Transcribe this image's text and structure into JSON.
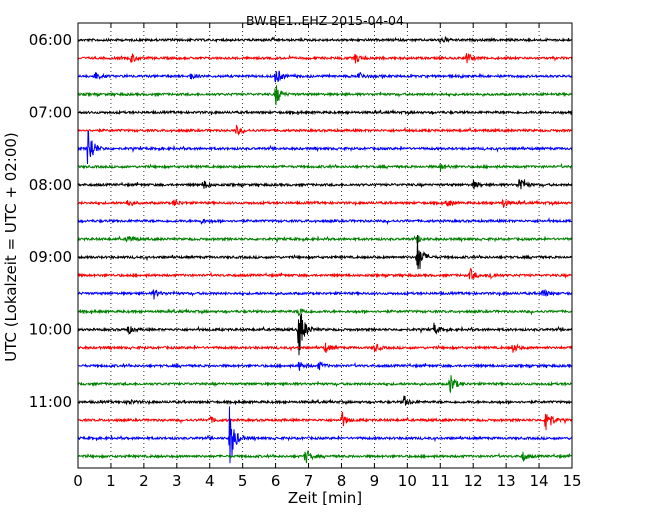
{
  "chart_data": {
    "type": "line",
    "title": "BW.BE1..EHZ 2015-04-04",
    "xlabel": "Zeit  [min]",
    "ylabel": "UTC (Lokalzeit = UTC + 02:00)",
    "xlim": [
      0,
      15
    ],
    "x_ticks": [
      "0",
      "1",
      "2",
      "3",
      "4",
      "5",
      "6",
      "7",
      "8",
      "9",
      "10",
      "11",
      "12",
      "13",
      "14",
      "15"
    ],
    "y_tick_labels": [
      "06:00",
      "07:00",
      "08:00",
      "09:00",
      "10:00",
      "11:00"
    ],
    "grid": "vertical dotted",
    "trace_interval_minutes": 15,
    "colors": [
      "#000000",
      "#ff0000",
      "#0000ff",
      "#008000"
    ],
    "traces": [
      {
        "start": "06:00",
        "events": [
          [
            11,
            0.2
          ]
        ]
      },
      {
        "start": "06:15",
        "events": [
          [
            1.6,
            0.35
          ],
          [
            8.4,
            0.3
          ],
          [
            11.8,
            0.35
          ]
        ]
      },
      {
        "start": "06:30",
        "events": [
          [
            0.5,
            0.25
          ],
          [
            3.4,
            0.2
          ],
          [
            6.0,
            0.6
          ],
          [
            8.5,
            0.3
          ]
        ]
      },
      {
        "start": "06:45",
        "events": [
          [
            6.0,
            0.7
          ]
        ]
      },
      {
        "start": "07:00",
        "events": []
      },
      {
        "start": "07:15",
        "events": [
          [
            4.8,
            0.3
          ]
        ]
      },
      {
        "start": "07:30",
        "events": [
          [
            0.3,
            1.6
          ]
        ]
      },
      {
        "start": "07:45",
        "events": [
          [
            11.0,
            0.2
          ]
        ]
      },
      {
        "start": "08:00",
        "events": [
          [
            3.8,
            0.3
          ],
          [
            12.0,
            0.25
          ],
          [
            13.4,
            0.6
          ]
        ]
      },
      {
        "start": "08:15",
        "events": [
          [
            1.5,
            0.25
          ],
          [
            2.9,
            0.25
          ],
          [
            11.2,
            0.25
          ],
          [
            12.9,
            0.3
          ]
        ]
      },
      {
        "start": "08:30",
        "events": [
          [
            3.7,
            0.2
          ]
        ]
      },
      {
        "start": "08:45",
        "events": [
          [
            1.5,
            0.3
          ],
          [
            10.3,
            0.2
          ]
        ]
      },
      {
        "start": "09:00",
        "events": [
          [
            10.3,
            1.3
          ]
        ]
      },
      {
        "start": "09:15",
        "events": [
          [
            11.9,
            0.4
          ],
          [
            12.5,
            0.25
          ]
        ]
      },
      {
        "start": "09:30",
        "events": [
          [
            2.3,
            0.3
          ],
          [
            14.1,
            0.3
          ]
        ]
      },
      {
        "start": "09:45",
        "events": [
          [
            6.7,
            0.3
          ]
        ]
      },
      {
        "start": "10:00",
        "events": [
          [
            6.7,
            1.9
          ],
          [
            1.5,
            0.3
          ],
          [
            10.8,
            0.35
          ]
        ]
      },
      {
        "start": "10:15",
        "events": [
          [
            7.5,
            0.3
          ],
          [
            9.0,
            0.25
          ],
          [
            13.2,
            0.3
          ]
        ]
      },
      {
        "start": "10:30",
        "events": [
          [
            6.7,
            0.3
          ],
          [
            7.3,
            0.25
          ]
        ]
      },
      {
        "start": "10:45",
        "events": [
          [
            11.3,
            0.7
          ]
        ]
      },
      {
        "start": "11:00",
        "events": [
          [
            1.5,
            0.2
          ],
          [
            9.9,
            0.35
          ]
        ]
      },
      {
        "start": "11:15",
        "events": [
          [
            8.0,
            0.5
          ],
          [
            14.2,
            1.1
          ],
          [
            4.0,
            0.2
          ]
        ]
      },
      {
        "start": "11:30",
        "events": [
          [
            4.6,
            1.9
          ]
        ]
      },
      {
        "start": "11:45",
        "events": [
          [
            6.9,
            0.5
          ],
          [
            13.5,
            0.3
          ]
        ]
      }
    ]
  }
}
